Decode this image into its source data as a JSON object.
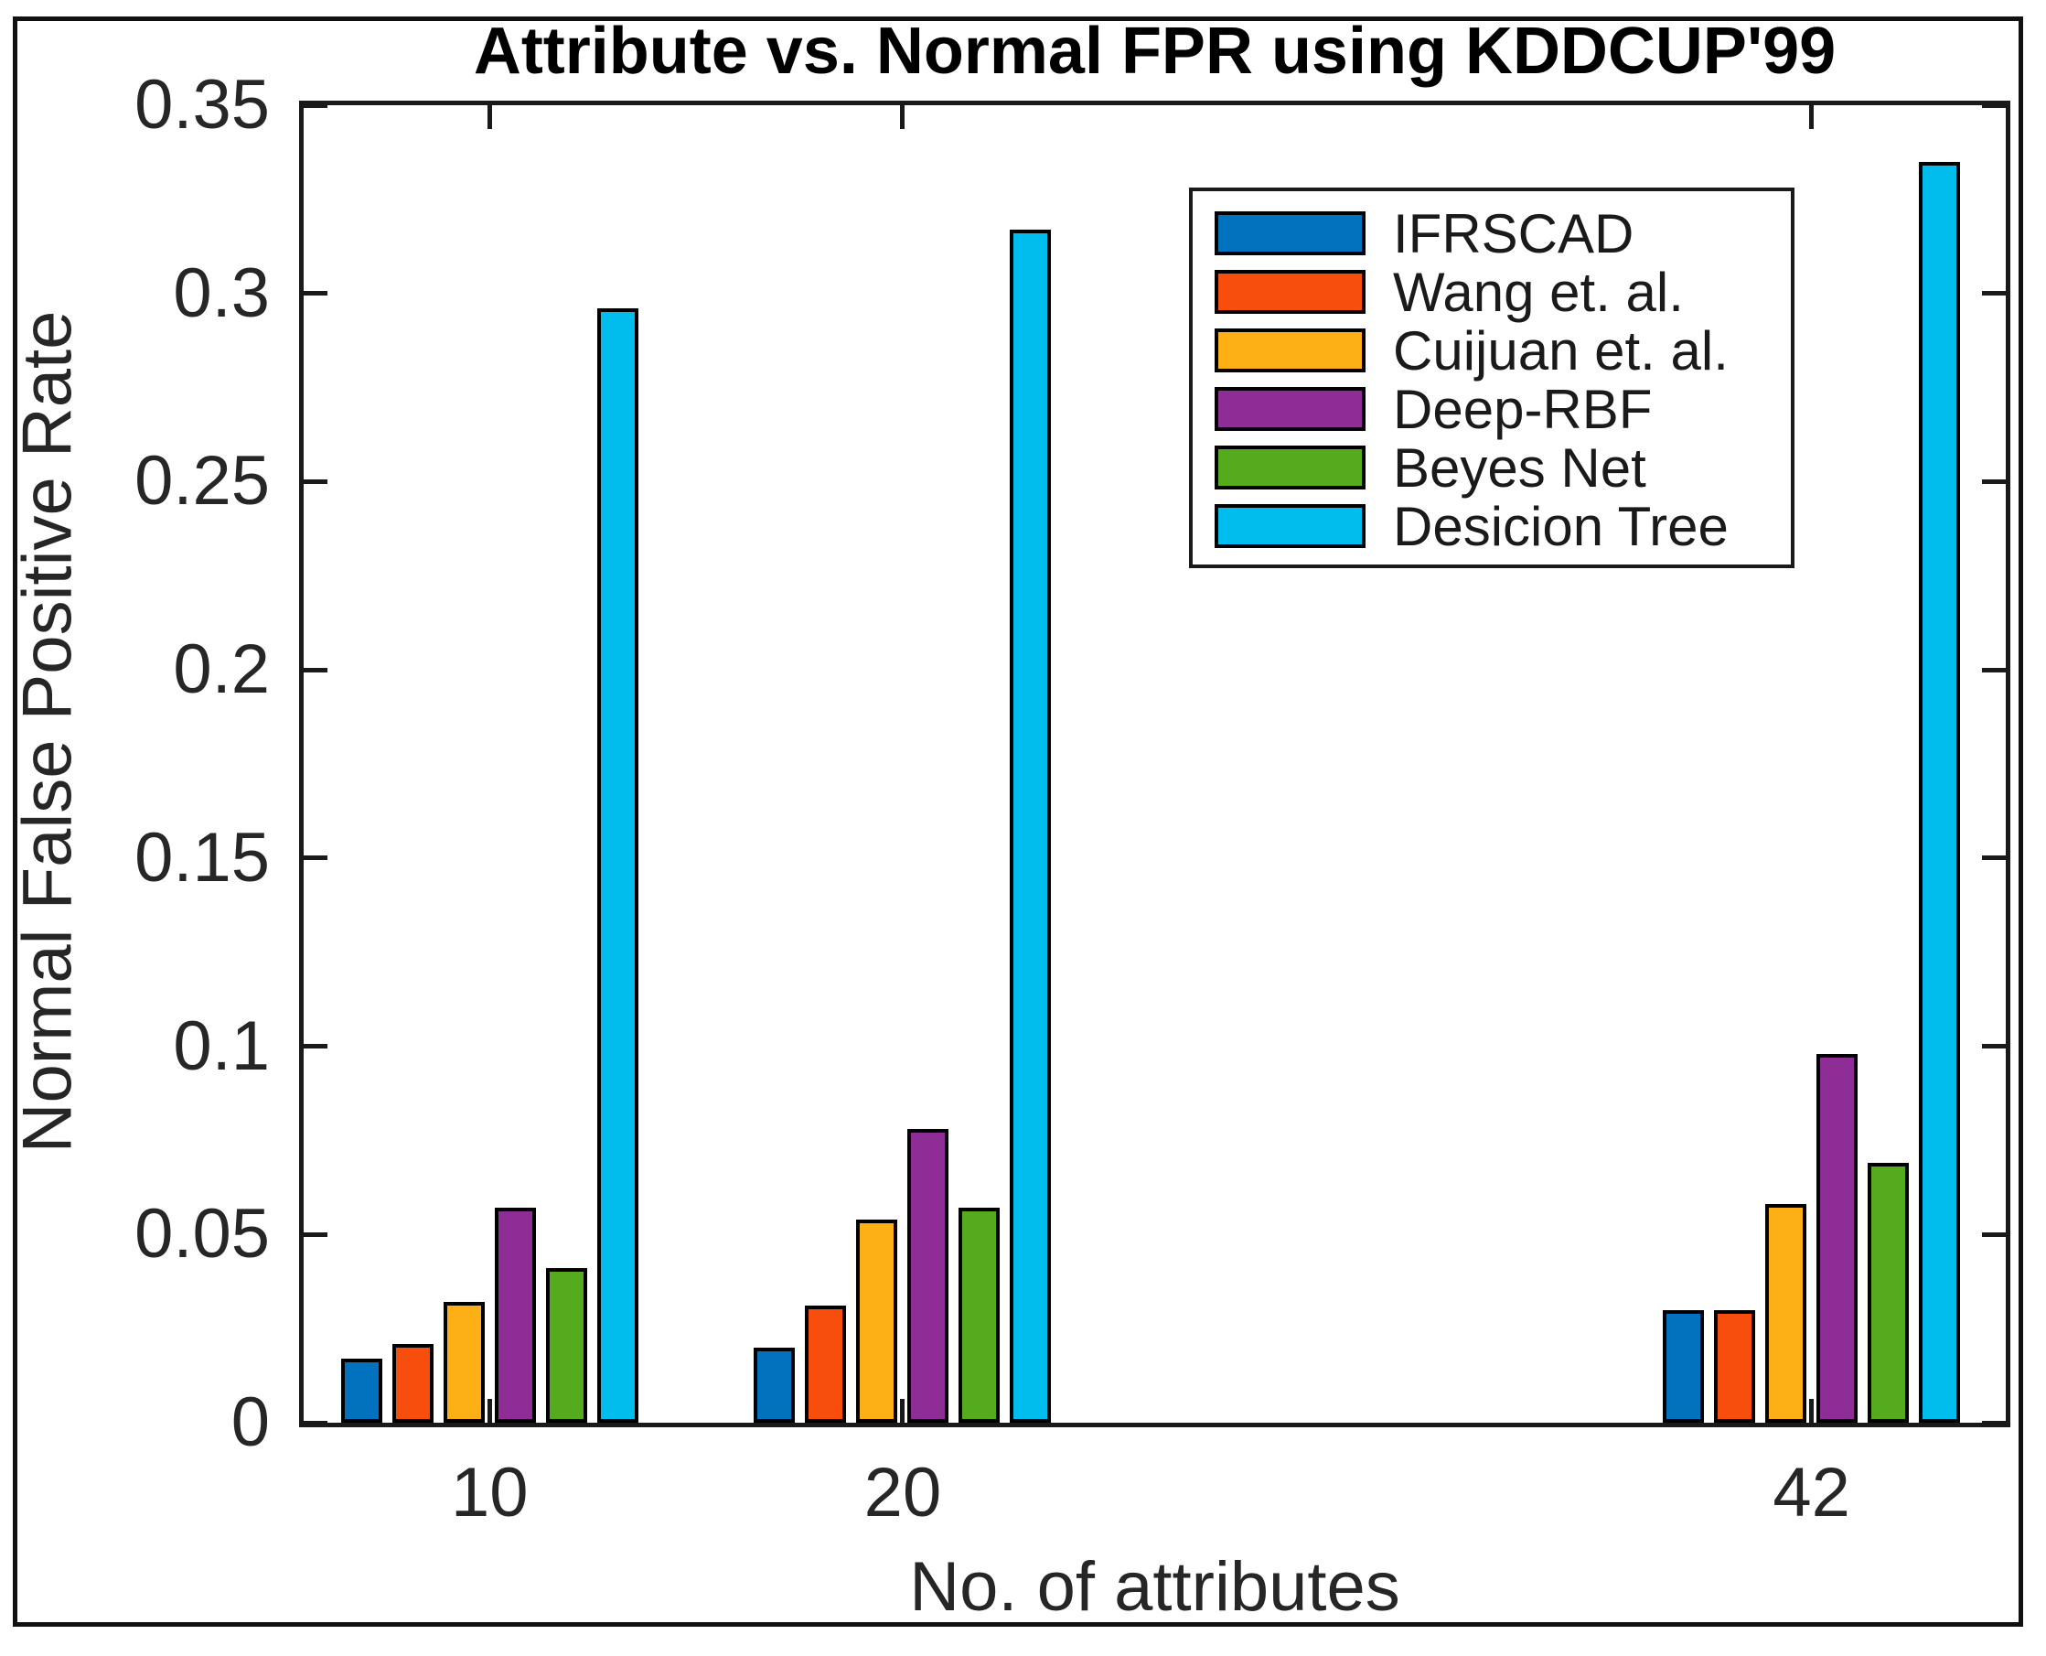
{
  "figure": {
    "background": "#ffffff",
    "border_color": "#111111"
  },
  "chart_data": {
    "type": "bar",
    "title": "Attribute vs. Normal FPR using KDDCUP'99",
    "xlabel": "No. of attributes",
    "ylabel": "Normal False Positive Rate",
    "categories": [
      10,
      20,
      42
    ],
    "x_tick_labels": [
      "10",
      "20",
      "42"
    ],
    "series": [
      {
        "name": "IFRSCAD",
        "color": "#0272BE",
        "values": [
          0.017,
          0.02,
          0.03
        ]
      },
      {
        "name": "Wang et. al.",
        "color": "#F84E0D",
        "values": [
          0.021,
          0.031,
          0.03
        ]
      },
      {
        "name": "Cuijuan et. al.",
        "color": "#FDAF16",
        "values": [
          0.032,
          0.054,
          0.058
        ]
      },
      {
        "name": "Deep-RBF",
        "color": "#8E2D95",
        "values": [
          0.057,
          0.078,
          0.098
        ]
      },
      {
        "name": "Beyes Net",
        "color": "#54AB1D",
        "values": [
          0.041,
          0.057,
          0.069
        ]
      },
      {
        "name": "Desicion Tree",
        "color": "#01BDEE",
        "values": [
          0.296,
          0.317,
          0.335
        ]
      }
    ],
    "ylim": [
      0,
      0.35
    ],
    "xlim": [
      5.5,
      46.7
    ],
    "ytick_values": [
      0,
      0.05,
      0.1,
      0.15,
      0.2,
      0.25,
      0.3,
      0.35
    ],
    "ytick_labels": [
      "0",
      "0.05",
      "0.1",
      "0.15",
      "0.2",
      "0.25",
      "0.3",
      "0.35"
    ],
    "grid": false,
    "legend": {
      "position": "upper right",
      "entries": [
        "IFRSCAD",
        "Wang et. al.",
        "Cuijuan et. al.",
        "Deep-RBF",
        "Beyes Net",
        "Desicion Tree"
      ]
    },
    "axis_color": "#1a1a1a",
    "bar_edge_color": "#000000"
  }
}
